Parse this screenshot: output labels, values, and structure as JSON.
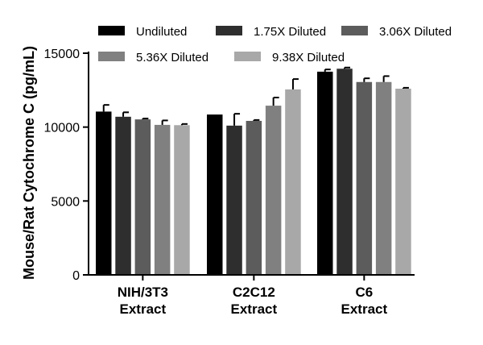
{
  "chart_data": {
    "type": "bar",
    "title": "",
    "xlabel": "",
    "ylabel": "Mouse/Rat Cytochrome C (pg/mL)",
    "ylim": [
      0,
      15000
    ],
    "yticks": [
      0,
      5000,
      10000,
      15000
    ],
    "ytick_labels": [
      "0",
      "5000",
      "10000",
      "15000"
    ],
    "categories": [
      [
        "NIH/3T3",
        "Extract"
      ],
      [
        "C2C12",
        "Extract"
      ],
      [
        "C6",
        "Extract"
      ]
    ],
    "legend_position": "top",
    "grid": false,
    "series": [
      {
        "name": "Undiluted",
        "color": "#000000",
        "values": [
          11050,
          10850,
          13750
        ],
        "errors": [
          450,
          0,
          150
        ]
      },
      {
        "name": "1.75X Diluted",
        "color": "#2e2e2e",
        "values": [
          10700,
          10100,
          13950
        ],
        "errors": [
          300,
          800,
          80
        ]
      },
      {
        "name": "3.06X Diluted",
        "color": "#5c5c5c",
        "values": [
          10520,
          10420,
          13050
        ],
        "errors": [
          60,
          60,
          250
        ]
      },
      {
        "name": "5.36X Diluted",
        "color": "#808080",
        "values": [
          10150,
          11450,
          13050
        ],
        "errors": [
          300,
          550,
          400
        ]
      },
      {
        "name": "9.38X Diluted",
        "color": "#a8a8a8",
        "values": [
          10130,
          12550,
          12600
        ],
        "errors": [
          80,
          700,
          60
        ]
      }
    ]
  }
}
